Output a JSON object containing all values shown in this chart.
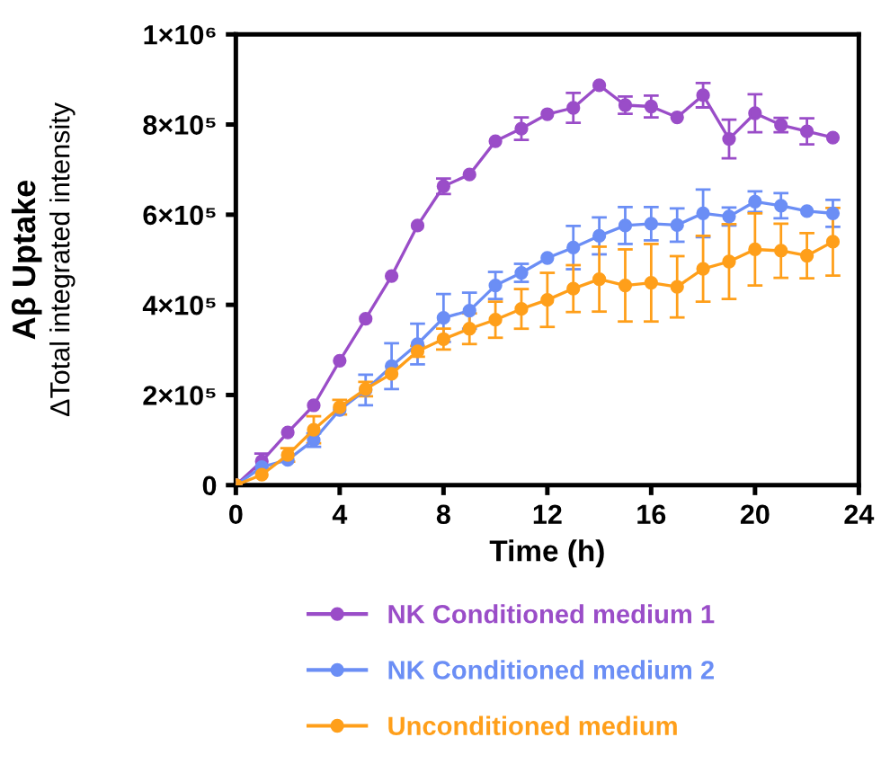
{
  "chart_data": {
    "type": "line",
    "ylabel": "Aβ Uptake\nΔTotal integrated intensity",
    "xlabel": "Time (h)",
    "x": [
      0,
      1,
      2,
      3,
      4,
      5,
      6,
      7,
      8,
      9,
      10,
      11,
      12,
      13,
      14,
      15,
      16,
      17,
      18,
      19,
      20,
      21,
      22,
      23
    ],
    "series": [
      {
        "name": "NK Conditioned medium 1",
        "color": "#9a4dc8",
        "values": [
          0,
          53000,
          117000,
          177000,
          276000,
          369000,
          464000,
          576000,
          663000,
          689000,
          763000,
          791000,
          823000,
          837000,
          887000,
          843000,
          840000,
          816000,
          865000,
          768000,
          825000,
          799000,
          785000,
          771000
        ],
        "errors": [
          null,
          17000,
          null,
          null,
          null,
          null,
          null,
          null,
          17000,
          null,
          null,
          25000,
          null,
          33000,
          null,
          19000,
          24000,
          null,
          27000,
          43000,
          42000,
          16000,
          29000,
          null
        ]
      },
      {
        "name": "NK Conditioned medium 2",
        "color": "#6b8ef5",
        "values": [
          0,
          40000,
          56000,
          100000,
          167000,
          211000,
          264000,
          313000,
          371000,
          387000,
          443000,
          471000,
          504000,
          527000,
          553000,
          576000,
          580000,
          577000,
          603000,
          596000,
          629000,
          620000,
          608000,
          603000
        ],
        "errors": [
          null,
          null,
          null,
          15000,
          null,
          34000,
          51000,
          45000,
          53000,
          40000,
          30000,
          20000,
          null,
          48000,
          41000,
          41000,
          37000,
          37000,
          53000,
          20000,
          23000,
          28000,
          null,
          30000
        ]
      },
      {
        "name": "Unconditioned medium",
        "color": "#ff9f1a",
        "values": [
          0,
          23000,
          67000,
          123000,
          173000,
          213000,
          247000,
          297000,
          324000,
          347000,
          367000,
          391000,
          411000,
          436000,
          457000,
          443000,
          449000,
          440000,
          480000,
          496000,
          523000,
          520000,
          509000,
          540000
        ],
        "errors": [
          null,
          null,
          15000,
          30000,
          16000,
          16000,
          null,
          12000,
          23000,
          34000,
          40000,
          44000,
          60000,
          52000,
          72000,
          80000,
          86000,
          68000,
          73000,
          83000,
          80000,
          60000,
          50000,
          75000
        ]
      }
    ],
    "xlim": [
      0,
      24
    ],
    "xticks": [
      0,
      4,
      8,
      12,
      16,
      20,
      24
    ],
    "ylim": [
      0,
      1000000
    ],
    "yticks": [
      {
        "value": 0,
        "label": "0"
      },
      {
        "value": 200000,
        "label": "2×10⁵"
      },
      {
        "value": 400000,
        "label": "4×10⁵"
      },
      {
        "value": 600000,
        "label": "6×10⁵"
      },
      {
        "value": 800000,
        "label": "8×10⁵"
      },
      {
        "value": 1000000,
        "label": "1×10⁶"
      }
    ],
    "marker": "circle",
    "line_style": "solid",
    "grid": false,
    "legend": "bottom"
  }
}
